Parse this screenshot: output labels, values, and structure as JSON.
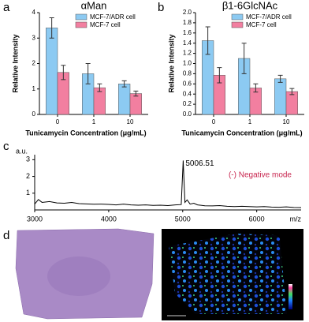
{
  "chart_data": [
    {
      "type": "bar",
      "label": "a",
      "title": "αMan",
      "ylabel": "Relative Intensity",
      "xlabel": "Tunicamycin Concentration (μg/mL)",
      "categories": [
        "0",
        "1",
        "10"
      ],
      "series": [
        {
          "name": "MCF-7/ADR cell",
          "color": "#8ccaf2",
          "values": [
            3.4,
            1.6,
            1.2
          ],
          "errors": [
            0.4,
            0.4,
            0.12
          ]
        },
        {
          "name": "MCF-7 cell",
          "color": "#f27fa0",
          "values": [
            1.65,
            1.05,
            0.82
          ],
          "errors": [
            0.28,
            0.15,
            0.1
          ]
        }
      ],
      "ylim": [
        0,
        4
      ],
      "yticks": [
        0,
        1,
        2,
        3,
        4
      ],
      "legend": "upper right"
    },
    {
      "type": "bar",
      "label": "b",
      "title": "β1-6GlcNAc",
      "ylabel": "Relative Intensity",
      "xlabel": "Tunicamycin Concentration (μg/mL)",
      "categories": [
        "0",
        "1",
        "10"
      ],
      "series": [
        {
          "name": "MCF-7/ADR cell",
          "color": "#8ccaf2",
          "values": [
            1.45,
            1.1,
            0.7
          ],
          "errors": [
            0.27,
            0.3,
            0.07
          ]
        },
        {
          "name": "MCF-7 cell",
          "color": "#f27fa0",
          "values": [
            0.77,
            0.52,
            0.45
          ],
          "errors": [
            0.15,
            0.08,
            0.06
          ]
        }
      ],
      "ylim": [
        0,
        2
      ],
      "yticks": [
        {
          "value": 0,
          "label": "0.0"
        },
        {
          "value": 0.2,
          "label": "0.2"
        },
        {
          "value": 0.4,
          "label": "0.4"
        },
        {
          "value": 0.6,
          "label": "0.6"
        },
        {
          "value": 0.8,
          "label": "0.8"
        },
        {
          "value": 1,
          "label": "1.0"
        },
        {
          "value": 1.2,
          "label": "1.2"
        },
        {
          "value": 1.4,
          "label": "1.4"
        },
        {
          "value": 1.6,
          "label": "1.6"
        },
        {
          "value": 1.8,
          "label": "1.8"
        },
        {
          "value": 2,
          "label": "2.0"
        }
      ],
      "legend": "upper right"
    },
    {
      "type": "line",
      "label": "c",
      "ylabel": "a.u.",
      "xlabel": "m/z",
      "color": "#000000",
      "x": [
        3000,
        3050,
        3100,
        3200,
        3300,
        3400,
        3500,
        3600,
        3700,
        3800,
        3900,
        4000,
        4100,
        4200,
        4300,
        4400,
        4500,
        4600,
        4700,
        4800,
        4900,
        4980,
        5006.51,
        5030,
        5060,
        5100,
        5150,
        5200,
        5300,
        5400,
        5500,
        5600,
        5700,
        5800,
        5900,
        6000,
        6100,
        6200,
        6300,
        6400,
        6500,
        6600
      ],
      "values": [
        0.35,
        0.62,
        0.45,
        0.5,
        0.42,
        0.4,
        0.45,
        0.38,
        0.36,
        0.34,
        0.35,
        0.33,
        0.3,
        0.35,
        0.3,
        0.28,
        0.3,
        0.27,
        0.28,
        0.26,
        0.3,
        0.32,
        2.95,
        0.45,
        0.6,
        0.35,
        0.4,
        0.3,
        0.25,
        0.24,
        0.26,
        0.22,
        0.2,
        0.22,
        0.2,
        0.18,
        0.2,
        0.17,
        0.16,
        0.18,
        0.15,
        0.14
      ],
      "peak_label": "5006.51",
      "annotation": "(-) Negative mode",
      "annotation_color": "#c8264f",
      "xlim": [
        3000,
        6600
      ],
      "xticks": [
        3000,
        4000,
        5000,
        6000
      ],
      "ylim": [
        0,
        3.3
      ],
      "yticks": [
        1,
        2,
        3
      ]
    }
  ],
  "image_panel": {
    "label": "d"
  }
}
